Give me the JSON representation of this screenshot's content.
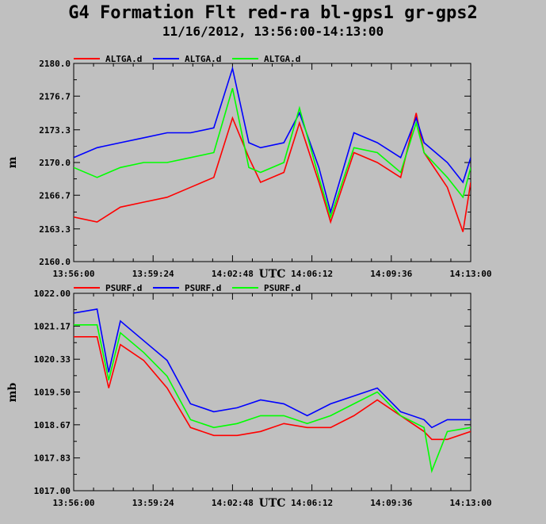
{
  "title": "G4 Formation Flt red-ra bl-gps1 gr-gps2",
  "subtitle": "11/16/2012, 13:56:00-14:13:00",
  "chart_data": [
    {
      "type": "line",
      "ylabel": "m",
      "xlabel": "UTC",
      "ylim": [
        2160.0,
        2180.0
      ],
      "yticks": [
        "2160.0",
        "2163.3",
        "2166.7",
        "2170.0",
        "2173.3",
        "2176.7",
        "2180.0"
      ],
      "xlim": [
        "13:56:00",
        "14:13:00"
      ],
      "xticks": [
        "13:56:00",
        "13:59:24",
        "14:02:48",
        "14:06:12",
        "14:09:36",
        "14:13:00"
      ],
      "grid": false,
      "legend": "top-left",
      "series": [
        {
          "name": "ALTGA.d",
          "color": "#ff0000",
          "x": [
            "13:56:00",
            "13:57:00",
            "13:58:00",
            "13:59:00",
            "14:00:00",
            "14:01:00",
            "14:02:00",
            "14:02:48",
            "14:03:30",
            "14:04:00",
            "14:05:00",
            "14:05:40",
            "14:06:30",
            "14:07:00",
            "14:08:00",
            "14:09:00",
            "14:10:00",
            "14:10:40",
            "14:11:00",
            "14:12:00",
            "14:12:40",
            "14:13:00"
          ],
          "values": [
            2164.5,
            2164.0,
            2165.5,
            2166.0,
            2166.5,
            2167.5,
            2168.5,
            2174.5,
            2170.5,
            2168.0,
            2169.0,
            2174.0,
            2168.0,
            2164.0,
            2171.0,
            2170.0,
            2168.5,
            2175.0,
            2171.0,
            2167.5,
            2163.0,
            2168.0
          ]
        },
        {
          "name": "ALTGA.d",
          "color": "#0000ff",
          "x": [
            "13:56:00",
            "13:57:00",
            "13:58:00",
            "13:59:00",
            "14:00:00",
            "14:01:00",
            "14:02:00",
            "14:02:48",
            "14:03:30",
            "14:04:00",
            "14:05:00",
            "14:05:40",
            "14:06:30",
            "14:07:00",
            "14:08:00",
            "14:09:00",
            "14:10:00",
            "14:10:40",
            "14:11:00",
            "14:12:00",
            "14:12:40",
            "14:13:00"
          ],
          "values": [
            2170.5,
            2171.5,
            2172.0,
            2172.5,
            2173.0,
            2173.0,
            2173.5,
            2179.5,
            2172.0,
            2171.5,
            2172.0,
            2175.0,
            2169.5,
            2165.0,
            2173.0,
            2172.0,
            2170.5,
            2174.5,
            2172.0,
            2170.0,
            2168.0,
            2170.5
          ]
        },
        {
          "name": "ALTGA.d",
          "color": "#00ff00",
          "x": [
            "13:56:00",
            "13:57:00",
            "13:58:00",
            "13:59:00",
            "14:00:00",
            "14:01:00",
            "14:02:00",
            "14:02:48",
            "14:03:30",
            "14:04:00",
            "14:05:00",
            "14:05:40",
            "14:06:30",
            "14:07:00",
            "14:08:00",
            "14:09:00",
            "14:10:00",
            "14:10:40",
            "14:11:00",
            "14:12:00",
            "14:12:40",
            "14:13:00"
          ],
          "values": [
            2169.5,
            2168.5,
            2169.5,
            2170.0,
            2170.0,
            2170.5,
            2171.0,
            2177.5,
            2169.5,
            2169.0,
            2170.0,
            2175.5,
            2168.5,
            2164.5,
            2171.5,
            2171.0,
            2169.0,
            2174.0,
            2171.0,
            2168.5,
            2166.5,
            2169.5
          ]
        }
      ]
    },
    {
      "type": "line",
      "ylabel": "mb",
      "xlabel": "UTC",
      "ylim": [
        1017.0,
        1022.0
      ],
      "yticks": [
        "1017.00",
        "1017.83",
        "1018.67",
        "1019.50",
        "1020.33",
        "1021.17",
        "1022.00"
      ],
      "xlim": [
        "13:56:00",
        "14:13:00"
      ],
      "xticks": [
        "13:56:00",
        "13:59:24",
        "14:02:48",
        "14:06:12",
        "14:09:36",
        "14:13:00"
      ],
      "grid": false,
      "legend": "top-left",
      "series": [
        {
          "name": "PSURF.d",
          "color": "#ff0000",
          "x": [
            "13:56:00",
            "13:57:00",
            "13:57:30",
            "13:58:00",
            "13:59:00",
            "14:00:00",
            "14:01:00",
            "14:02:00",
            "14:03:00",
            "14:04:00",
            "14:05:00",
            "14:06:00",
            "14:07:00",
            "14:08:00",
            "14:09:00",
            "14:10:00",
            "14:11:00",
            "14:11:20",
            "14:12:00",
            "14:13:00"
          ],
          "values": [
            1020.9,
            1020.9,
            1019.6,
            1020.7,
            1020.3,
            1019.6,
            1018.6,
            1018.4,
            1018.4,
            1018.5,
            1018.7,
            1018.6,
            1018.6,
            1018.9,
            1019.3,
            1018.9,
            1018.5,
            1018.3,
            1018.3,
            1018.5
          ]
        },
        {
          "name": "PSURF.d",
          "color": "#0000ff",
          "x": [
            "13:56:00",
            "13:57:00",
            "13:57:30",
            "13:58:00",
            "13:59:00",
            "14:00:00",
            "14:01:00",
            "14:02:00",
            "14:03:00",
            "14:04:00",
            "14:05:00",
            "14:06:00",
            "14:07:00",
            "14:08:00",
            "14:09:00",
            "14:10:00",
            "14:11:00",
            "14:11:20",
            "14:12:00",
            "14:13:00"
          ],
          "values": [
            1021.5,
            1021.6,
            1020.0,
            1021.3,
            1020.8,
            1020.3,
            1019.2,
            1019.0,
            1019.1,
            1019.3,
            1019.2,
            1018.9,
            1019.2,
            1019.4,
            1019.6,
            1019.0,
            1018.8,
            1018.6,
            1018.8,
            1018.8
          ]
        },
        {
          "name": "PSURF.d",
          "color": "#00ff00",
          "x": [
            "13:56:00",
            "13:57:00",
            "13:57:30",
            "13:58:00",
            "13:59:00",
            "14:00:00",
            "14:01:00",
            "14:02:00",
            "14:03:00",
            "14:04:00",
            "14:05:00",
            "14:06:00",
            "14:07:00",
            "14:08:00",
            "14:09:00",
            "14:10:00",
            "14:11:00",
            "14:11:20",
            "14:12:00",
            "14:13:00"
          ],
          "values": [
            1021.2,
            1021.2,
            1019.8,
            1021.0,
            1020.5,
            1019.9,
            1018.8,
            1018.6,
            1018.7,
            1018.9,
            1018.9,
            1018.7,
            1018.9,
            1019.2,
            1019.5,
            1018.9,
            1018.6,
            1017.5,
            1018.5,
            1018.6
          ]
        }
      ]
    }
  ]
}
